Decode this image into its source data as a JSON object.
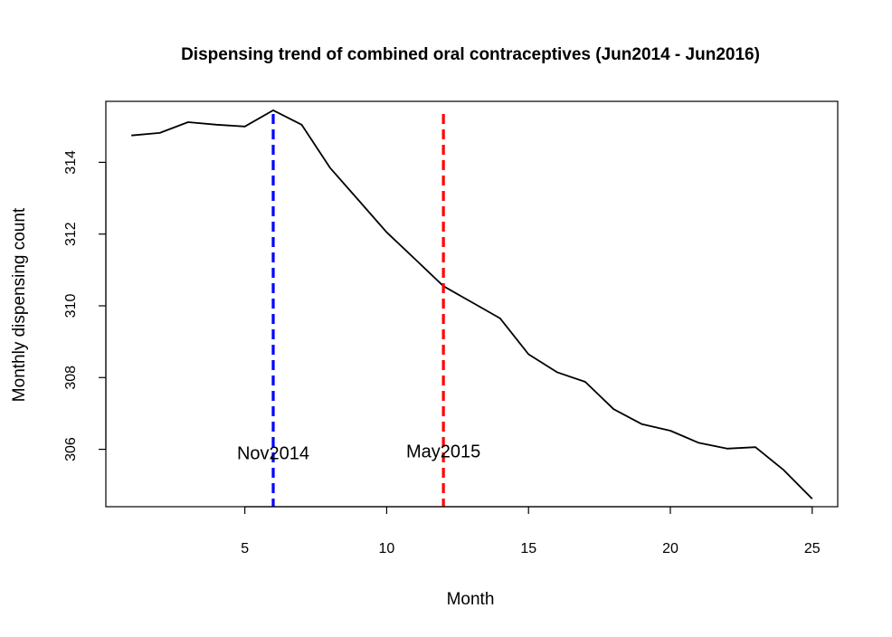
{
  "chart_data": {
    "type": "line",
    "title": "Dispensing trend of combined oral contraceptives (Jun2014 - Jun2016)",
    "xlabel": "Month",
    "ylabel": "Monthly dispensing count",
    "xlim": [
      0.1,
      25.9
    ],
    "ylim": [
      304.4,
      315.7
    ],
    "xticks": [
      5,
      10,
      15,
      20,
      25
    ],
    "yticks": [
      306,
      308,
      310,
      312,
      314
    ],
    "grid": false,
    "series": [
      {
        "color": "#000000",
        "x": [
          1,
          2,
          3,
          4,
          5,
          6,
          7,
          8,
          9,
          10,
          11,
          12,
          13,
          14,
          15,
          16,
          17,
          18,
          19,
          20,
          21,
          22,
          23,
          24,
          25
        ],
        "y": [
          314.75,
          314.82,
          315.12,
          315.05,
          315.0,
          315.45,
          315.05,
          313.85,
          312.95,
          312.05,
          311.3,
          310.55,
          310.1,
          309.65,
          308.65,
          308.15,
          307.88,
          307.12,
          306.7,
          306.52,
          306.18,
          306.02,
          306.06,
          305.42,
          304.62
        ]
      }
    ],
    "vlines": [
      {
        "x": 6,
        "label": "Nov2014",
        "color": "#0000ff",
        "label_y": 305.9
      },
      {
        "x": 12,
        "label": "May2015",
        "color": "#ff0000",
        "label_y": 305.95
      }
    ]
  }
}
